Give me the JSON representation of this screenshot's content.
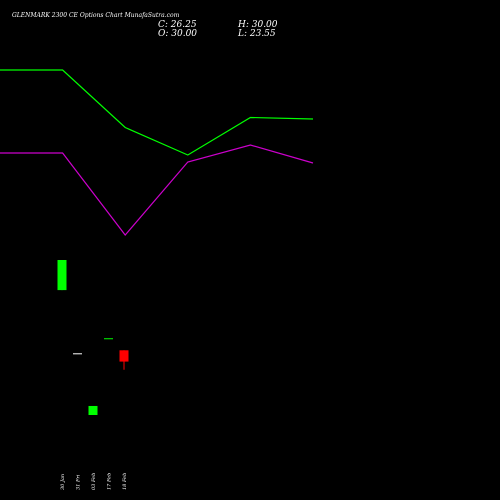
{
  "header": {
    "title": "GLENMARK 2300 CE Options Chart MunafaSutra.com",
    "close": "C: 26.25",
    "high": "H: 30.00",
    "open": "O: 30.00",
    "low": "L: 23.55"
  },
  "colors": {
    "background": "#000000",
    "text": "#ffffff",
    "upper_line": "#00ff00",
    "lower_line": "#cc00cc",
    "bullish_candle": "#00ff00",
    "bearish_candle": "#ff0000",
    "neutral_candle": "#ffffff",
    "doji_candle": "#00ff00"
  },
  "chart_data": {
    "type": "candlestick",
    "title": "GLENMARK 2300 CE Options Chart MunafaSutra.com",
    "categories": [
      "30 Jan",
      "31 Fri",
      "03 Feb",
      "17 Feb",
      "18 Feb"
    ],
    "candles": [
      {
        "label": "30 Jan",
        "open": 60,
        "high": 60,
        "low": 50,
        "close": 50,
        "color": "bullish"
      },
      {
        "label": "31 Fri",
        "open": 29.0,
        "high": 29.0,
        "low": 29.0,
        "close": 29.0,
        "color": "neutral"
      },
      {
        "label": "03 Feb",
        "open": 11.5,
        "high": 11.5,
        "low": 8.5,
        "close": 8.5,
        "color": "bullish"
      },
      {
        "label": "17 Feb",
        "open": 34.0,
        "high": 34.0,
        "low": 34.0,
        "close": 34.0,
        "color": "doji"
      },
      {
        "label": "18 Feb",
        "open": 30.0,
        "high": 30.0,
        "low": 23.55,
        "close": 26.25,
        "color": "bearish"
      }
    ],
    "overlay_lines": [
      {
        "points": [
          [
            0,
            0.14
          ],
          [
            1,
            0.14
          ],
          [
            2,
            0.255
          ],
          [
            3,
            0.31
          ],
          [
            4,
            0.235
          ],
          [
            5,
            0.238
          ]
        ],
        "color": "upper_line"
      },
      {
        "points": [
          [
            0,
            0.306
          ],
          [
            1,
            0.306
          ],
          [
            2,
            0.47
          ],
          [
            3,
            0.324
          ],
          [
            4,
            0.29
          ],
          [
            5,
            0.326
          ]
        ],
        "color": "lower_line"
      }
    ],
    "grid": false,
    "legend": "none"
  }
}
